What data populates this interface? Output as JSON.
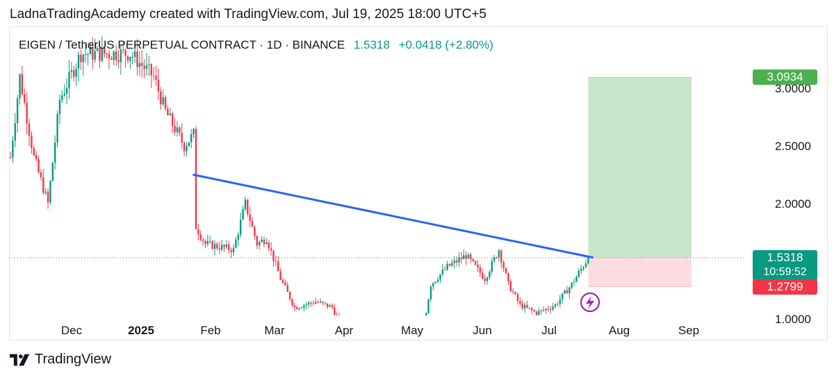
{
  "header": {
    "attribution": "LadnaTradingAcademy created with TradingView.com, Jul 19, 2025 18:00 UTC+5"
  },
  "legend": {
    "symbol": "EIGEN / TetherUS PERPETUAL CONTRACT · 1D · BINANCE",
    "price": "1.5318",
    "change": "+0.0418 (+2.80%)"
  },
  "price_tags": {
    "target": "3.0934",
    "current": "1.5318",
    "countdown": "10:59:52",
    "stop": "1.2799"
  },
  "footer": {
    "brand": "TradingView"
  },
  "colors": {
    "up": "#089981",
    "down": "#f23645",
    "trendline": "#2962ff",
    "profit_zone": "#c8e6c9",
    "loss_zone": "#fcdce0",
    "target_tag": "#4caf50",
    "stop_tag": "#f23645",
    "event_icon": "#9c27b0"
  },
  "chart_data": {
    "type": "candlestick",
    "y_axis": {
      "ticks": [
        "1.0000",
        "1.5000",
        "2.0000",
        "2.5000",
        "3.0000"
      ],
      "tick_values": [
        1.0,
        1.5,
        2.0,
        2.5,
        3.0
      ]
    },
    "x_axis": {
      "ticks": [
        "Dec",
        "2025",
        "Feb",
        "Mar",
        "Apr",
        "May",
        "Jun",
        "Jul",
        "Aug",
        "Sep"
      ],
      "bold": [
        "2025"
      ]
    },
    "current_price": 1.5318,
    "trendline": {
      "from": {
        "date": "2025-02-01",
        "price": 2.25
      },
      "to": {
        "date": "2025-07-19",
        "price": 1.53
      }
    },
    "position": {
      "entry": 1.5318,
      "target": 3.0934,
      "stop": 1.2799,
      "start": "2025-07-19",
      "end": "2025-09-01"
    },
    "anchors": [
      {
        "date": "2024-11-15",
        "price": 2.4
      },
      {
        "date": "2024-11-19",
        "price": 3.1
      },
      {
        "date": "2024-11-25",
        "price": 2.4
      },
      {
        "date": "2024-12-01",
        "price": 2.0
      },
      {
        "date": "2024-12-06",
        "price": 2.9
      },
      {
        "date": "2024-12-15",
        "price": 3.3
      },
      {
        "date": "2025-01-05",
        "price": 3.3
      },
      {
        "date": "2025-01-15",
        "price": 3.1
      },
      {
        "date": "2025-01-20",
        "price": 2.8
      },
      {
        "date": "2025-01-28",
        "price": 2.5
      },
      {
        "date": "2025-02-01",
        "price": 2.6
      },
      {
        "date": "2025-02-02",
        "price": 1.8
      },
      {
        "date": "2025-02-06",
        "price": 1.65
      },
      {
        "date": "2025-02-18",
        "price": 1.6
      },
      {
        "date": "2025-02-23",
        "price": 2.0
      },
      {
        "date": "2025-02-28",
        "price": 1.65
      },
      {
        "date": "2025-03-04",
        "price": 1.7
      },
      {
        "date": "2025-03-10",
        "price": 1.35
      },
      {
        "date": "2025-03-16",
        "price": 1.1
      },
      {
        "date": "2025-03-25",
        "price": 1.15
      },
      {
        "date": "2025-04-01",
        "price": 1.1
      },
      {
        "date": "2025-04-07",
        "price": 0.85
      },
      {
        "date": "2025-04-15",
        "price": 0.82
      },
      {
        "date": "2025-04-24",
        "price": 0.87
      },
      {
        "date": "2025-04-30",
        "price": 0.88
      },
      {
        "date": "2025-05-05",
        "price": 1.0
      },
      {
        "date": "2025-05-10",
        "price": 0.95
      },
      {
        "date": "2025-05-13",
        "price": 1.3
      },
      {
        "date": "2025-05-20",
        "price": 1.45
      },
      {
        "date": "2025-05-28",
        "price": 1.55
      },
      {
        "date": "2025-06-01",
        "price": 1.45
      },
      {
        "date": "2025-06-05",
        "price": 1.35
      },
      {
        "date": "2025-06-11",
        "price": 1.6
      },
      {
        "date": "2025-06-15",
        "price": 1.3
      },
      {
        "date": "2025-06-20",
        "price": 1.12
      },
      {
        "date": "2025-06-27",
        "price": 1.05
      },
      {
        "date": "2025-07-05",
        "price": 1.12
      },
      {
        "date": "2025-07-12",
        "price": 1.3
      },
      {
        "date": "2025-07-19",
        "price": 1.5318
      }
    ]
  }
}
